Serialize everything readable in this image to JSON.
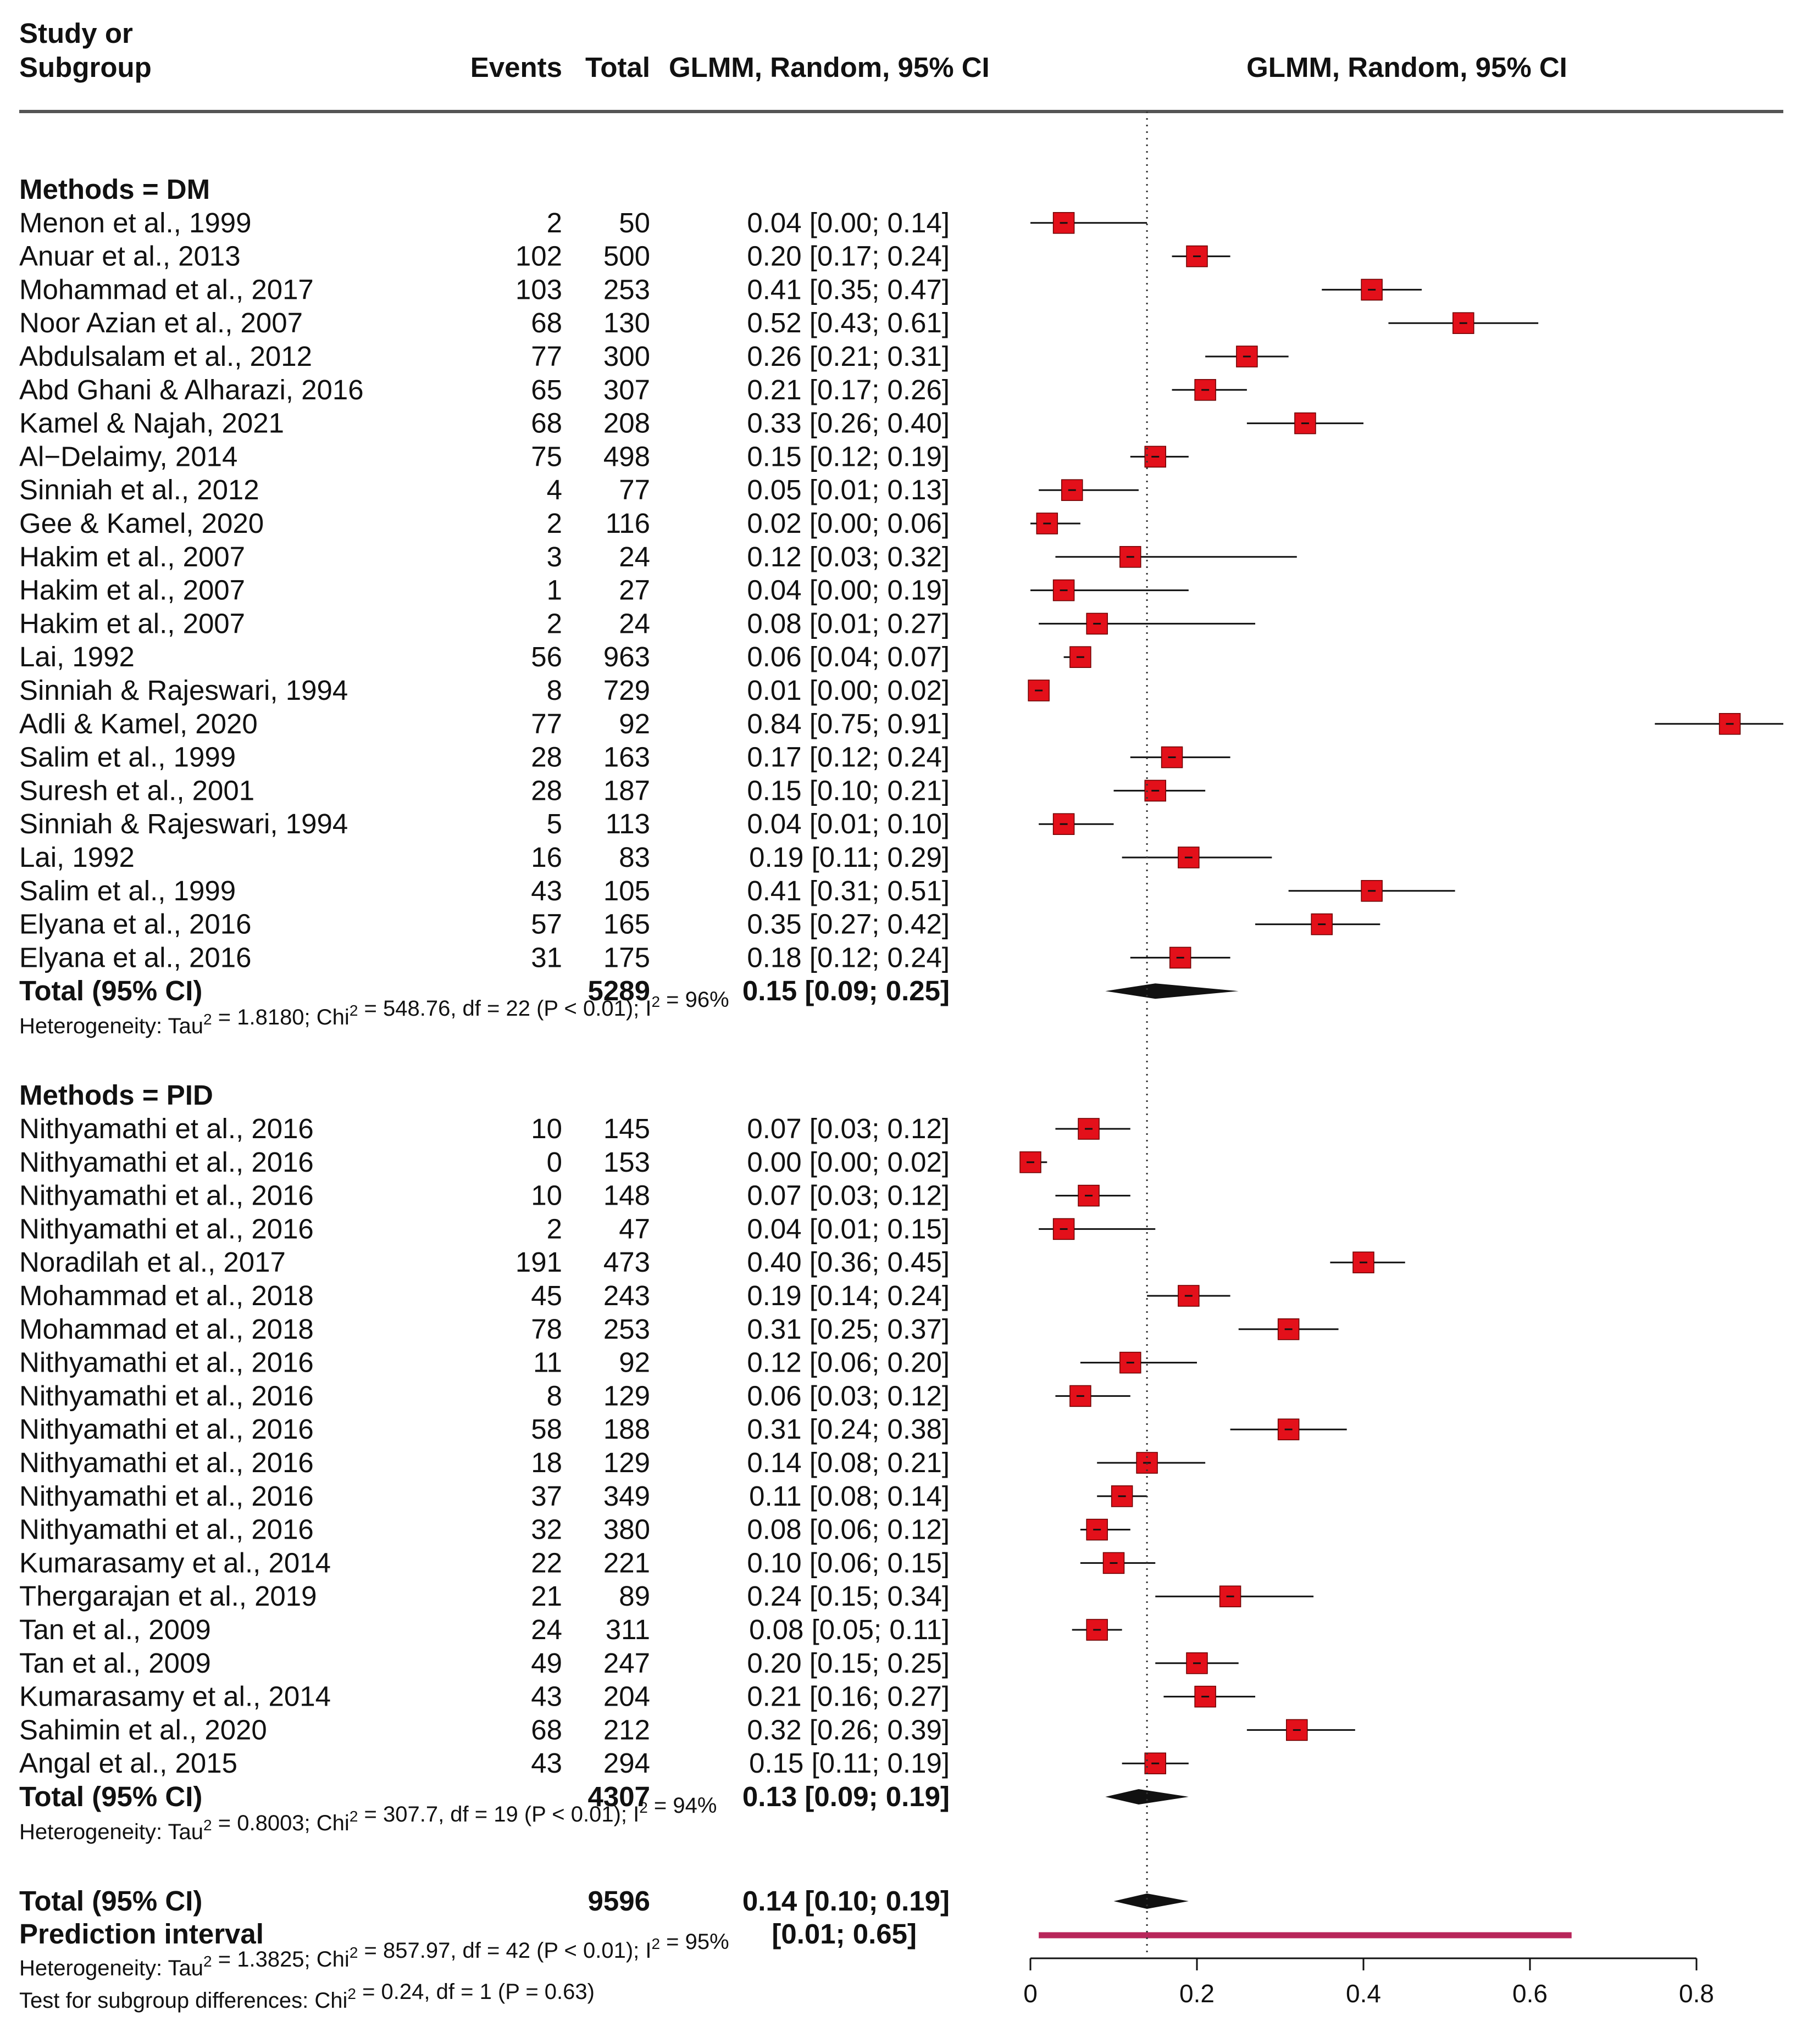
{
  "header": {
    "study_line1": "Study or",
    "study_line2": "Subgroup",
    "events": "Events",
    "total": "Total",
    "ci_col": "GLMM, Random, 95% CI",
    "plot_col": "GLMM, Random, 95% CI"
  },
  "chart_data": {
    "type": "forest",
    "x_axis": {
      "range": [
        0,
        0.8
      ],
      "ticks": [
        "0",
        "0.2",
        "0.4",
        "0.6",
        "0.8"
      ]
    },
    "reference_line": 0.14,
    "groups": [
      {
        "title": "Methods = DM",
        "studies": [
          {
            "name": "Menon et al., 1999",
            "events": "2",
            "total": "50",
            "ci_text": "0.04 [0.00; 0.14]",
            "est": 0.04,
            "lo": 0.0,
            "hi": 0.14
          },
          {
            "name": "Anuar et al., 2013",
            "events": "102",
            "total": "500",
            "ci_text": "0.20 [0.17; 0.24]",
            "est": 0.2,
            "lo": 0.17,
            "hi": 0.24
          },
          {
            "name": "Mohammad et al., 2017",
            "events": "103",
            "total": "253",
            "ci_text": "0.41 [0.35; 0.47]",
            "est": 0.41,
            "lo": 0.35,
            "hi": 0.47
          },
          {
            "name": "Noor Azian et al., 2007",
            "events": "68",
            "total": "130",
            "ci_text": "0.52 [0.43; 0.61]",
            "est": 0.52,
            "lo": 0.43,
            "hi": 0.61
          },
          {
            "name": "Abdulsalam et al., 2012",
            "events": "77",
            "total": "300",
            "ci_text": "0.26 [0.21; 0.31]",
            "est": 0.26,
            "lo": 0.21,
            "hi": 0.31
          },
          {
            "name": "Abd Ghani & Alharazi, 2016",
            "events": "65",
            "total": "307",
            "ci_text": "0.21 [0.17; 0.26]",
            "est": 0.21,
            "lo": 0.17,
            "hi": 0.26
          },
          {
            "name": "Kamel & Najah, 2021",
            "events": "68",
            "total": "208",
            "ci_text": "0.33 [0.26; 0.40]",
            "est": 0.33,
            "lo": 0.26,
            "hi": 0.4
          },
          {
            "name": "Al−Delaimy, 2014",
            "events": "75",
            "total": "498",
            "ci_text": "0.15 [0.12; 0.19]",
            "est": 0.15,
            "lo": 0.12,
            "hi": 0.19
          },
          {
            "name": "Sinniah et al., 2012",
            "events": "4",
            "total": "77",
            "ci_text": "0.05 [0.01; 0.13]",
            "est": 0.05,
            "lo": 0.01,
            "hi": 0.13
          },
          {
            "name": "Gee & Kamel, 2020",
            "events": "2",
            "total": "116",
            "ci_text": "0.02 [0.00; 0.06]",
            "est": 0.02,
            "lo": 0.0,
            "hi": 0.06
          },
          {
            "name": "Hakim et al., 2007",
            "events": "3",
            "total": "24",
            "ci_text": "0.12 [0.03; 0.32]",
            "est": 0.12,
            "lo": 0.03,
            "hi": 0.32
          },
          {
            "name": "Hakim et al., 2007",
            "events": "1",
            "total": "27",
            "ci_text": "0.04 [0.00; 0.19]",
            "est": 0.04,
            "lo": 0.0,
            "hi": 0.19
          },
          {
            "name": "Hakim et al., 2007",
            "events": "2",
            "total": "24",
            "ci_text": "0.08 [0.01; 0.27]",
            "est": 0.08,
            "lo": 0.01,
            "hi": 0.27
          },
          {
            "name": "Lai, 1992",
            "events": "56",
            "total": "963",
            "ci_text": "0.06 [0.04; 0.07]",
            "est": 0.06,
            "lo": 0.04,
            "hi": 0.07
          },
          {
            "name": "Sinniah & Rajeswari, 1994",
            "events": "8",
            "total": "729",
            "ci_text": "0.01 [0.00; 0.02]",
            "est": 0.01,
            "lo": 0.0,
            "hi": 0.02
          },
          {
            "name": "Adli & Kamel, 2020",
            "events": "77",
            "total": "92",
            "ci_text": "0.84 [0.75; 0.91]",
            "est": 0.84,
            "lo": 0.75,
            "hi": 0.91
          },
          {
            "name": "Salim et al., 1999",
            "events": "28",
            "total": "163",
            "ci_text": "0.17 [0.12; 0.24]",
            "est": 0.17,
            "lo": 0.12,
            "hi": 0.24
          },
          {
            "name": "Suresh et al., 2001",
            "events": "28",
            "total": "187",
            "ci_text": "0.15 [0.10; 0.21]",
            "est": 0.15,
            "lo": 0.1,
            "hi": 0.21
          },
          {
            "name": "Sinniah & Rajeswari, 1994",
            "events": "5",
            "total": "113",
            "ci_text": "0.04 [0.01; 0.10]",
            "est": 0.04,
            "lo": 0.01,
            "hi": 0.1
          },
          {
            "name": "Lai, 1992",
            "events": "16",
            "total": "83",
            "ci_text": "0.19 [0.11; 0.29]",
            "est": 0.19,
            "lo": 0.11,
            "hi": 0.29
          },
          {
            "name": "Salim et al., 1999",
            "events": "43",
            "total": "105",
            "ci_text": "0.41 [0.31; 0.51]",
            "est": 0.41,
            "lo": 0.31,
            "hi": 0.51
          },
          {
            "name": "Elyana et al., 2016",
            "events": "57",
            "total": "165",
            "ci_text": "0.35 [0.27; 0.42]",
            "est": 0.35,
            "lo": 0.27,
            "hi": 0.42
          },
          {
            "name": "Elyana et al., 2016",
            "events": "31",
            "total": "175",
            "ci_text": "0.18 [0.12; 0.24]",
            "est": 0.18,
            "lo": 0.12,
            "hi": 0.24
          }
        ],
        "total": {
          "label": "Total (95% CI)",
          "n": "5289",
          "ci_text": "0.15 [0.09; 0.25]",
          "est": 0.15,
          "lo": 0.09,
          "hi": 0.25
        },
        "heterogeneity": "Heterogeneity: Tau² = 1.8180; Chi² = 548.76, df = 22 (P < 0.01); I² = 96%"
      },
      {
        "title": "Methods = PID",
        "studies": [
          {
            "name": "Nithyamathi et al., 2016",
            "events": "10",
            "total": "145",
            "ci_text": "0.07 [0.03; 0.12]",
            "est": 0.07,
            "lo": 0.03,
            "hi": 0.12
          },
          {
            "name": "Nithyamathi et al., 2016",
            "events": "0",
            "total": "153",
            "ci_text": "0.00 [0.00; 0.02]",
            "est": 0.0,
            "lo": 0.0,
            "hi": 0.02
          },
          {
            "name": "Nithyamathi et al., 2016",
            "events": "10",
            "total": "148",
            "ci_text": "0.07 [0.03; 0.12]",
            "est": 0.07,
            "lo": 0.03,
            "hi": 0.12
          },
          {
            "name": "Nithyamathi et al., 2016",
            "events": "2",
            "total": "47",
            "ci_text": "0.04 [0.01; 0.15]",
            "est": 0.04,
            "lo": 0.01,
            "hi": 0.15
          },
          {
            "name": "Noradilah et al., 2017",
            "events": "191",
            "total": "473",
            "ci_text": "0.40 [0.36; 0.45]",
            "est": 0.4,
            "lo": 0.36,
            "hi": 0.45
          },
          {
            "name": "Mohammad et al., 2018",
            "events": "45",
            "total": "243",
            "ci_text": "0.19 [0.14; 0.24]",
            "est": 0.19,
            "lo": 0.14,
            "hi": 0.24
          },
          {
            "name": "Mohammad et al., 2018",
            "events": "78",
            "total": "253",
            "ci_text": "0.31 [0.25; 0.37]",
            "est": 0.31,
            "lo": 0.25,
            "hi": 0.37
          },
          {
            "name": "Nithyamathi et al., 2016",
            "events": "11",
            "total": "92",
            "ci_text": "0.12 [0.06; 0.20]",
            "est": 0.12,
            "lo": 0.06,
            "hi": 0.2
          },
          {
            "name": "Nithyamathi et al., 2016",
            "events": "8",
            "total": "129",
            "ci_text": "0.06 [0.03; 0.12]",
            "est": 0.06,
            "lo": 0.03,
            "hi": 0.12
          },
          {
            "name": "Nithyamathi et al., 2016",
            "events": "58",
            "total": "188",
            "ci_text": "0.31 [0.24; 0.38]",
            "est": 0.31,
            "lo": 0.24,
            "hi": 0.38
          },
          {
            "name": "Nithyamathi et al., 2016",
            "events": "18",
            "total": "129",
            "ci_text": "0.14 [0.08; 0.21]",
            "est": 0.14,
            "lo": 0.08,
            "hi": 0.21
          },
          {
            "name": "Nithyamathi et al., 2016",
            "events": "37",
            "total": "349",
            "ci_text": "0.11 [0.08; 0.14]",
            "est": 0.11,
            "lo": 0.08,
            "hi": 0.14
          },
          {
            "name": "Nithyamathi et al., 2016",
            "events": "32",
            "total": "380",
            "ci_text": "0.08 [0.06; 0.12]",
            "est": 0.08,
            "lo": 0.06,
            "hi": 0.12
          },
          {
            "name": "Kumarasamy et al., 2014",
            "events": "22",
            "total": "221",
            "ci_text": "0.10 [0.06; 0.15]",
            "est": 0.1,
            "lo": 0.06,
            "hi": 0.15
          },
          {
            "name": "Thergarajan et al., 2019",
            "events": "21",
            "total": "89",
            "ci_text": "0.24 [0.15; 0.34]",
            "est": 0.24,
            "lo": 0.15,
            "hi": 0.34
          },
          {
            "name": "Tan et al., 2009",
            "events": "24",
            "total": "311",
            "ci_text": "0.08 [0.05; 0.11]",
            "est": 0.08,
            "lo": 0.05,
            "hi": 0.11
          },
          {
            "name": "Tan et al., 2009",
            "events": "49",
            "total": "247",
            "ci_text": "0.20 [0.15; 0.25]",
            "est": 0.2,
            "lo": 0.15,
            "hi": 0.25
          },
          {
            "name": "Kumarasamy et al., 2014",
            "events": "43",
            "total": "204",
            "ci_text": "0.21 [0.16; 0.27]",
            "est": 0.21,
            "lo": 0.16,
            "hi": 0.27
          },
          {
            "name": "Sahimin et al., 2020",
            "events": "68",
            "total": "212",
            "ci_text": "0.32 [0.26; 0.39]",
            "est": 0.32,
            "lo": 0.26,
            "hi": 0.39
          },
          {
            "name": "Angal et al., 2015",
            "events": "43",
            "total": "294",
            "ci_text": "0.15 [0.11; 0.19]",
            "est": 0.15,
            "lo": 0.11,
            "hi": 0.19
          }
        ],
        "total": {
          "label": "Total (95% CI)",
          "n": "4307",
          "ci_text": "0.13 [0.09; 0.19]",
          "est": 0.13,
          "lo": 0.09,
          "hi": 0.19
        },
        "heterogeneity": "Heterogeneity: Tau² = 0.8003; Chi² = 307.7, df = 19 (P < 0.01); I² = 94%"
      }
    ],
    "overall": {
      "label": "Total (95% CI)",
      "n": "9596",
      "ci_text": "0.14 [0.10; 0.19]",
      "est": 0.14,
      "lo": 0.1,
      "hi": 0.19,
      "prediction_label": "Prediction interval",
      "prediction_text": "[0.01; 0.65]",
      "pi_lo": 0.01,
      "pi_hi": 0.65,
      "heterogeneity": "Heterogeneity: Tau² = 1.3825; Chi² = 857.97, df = 42 (P < 0.01); I² = 95%",
      "subgroup_test": "Test for subgroup differences: Chi² = 0.24, df = 1 (P = 0.63)"
    },
    "colors": {
      "square": "#e3101a",
      "diamond": "#111111",
      "prediction": "#b8265a"
    }
  }
}
